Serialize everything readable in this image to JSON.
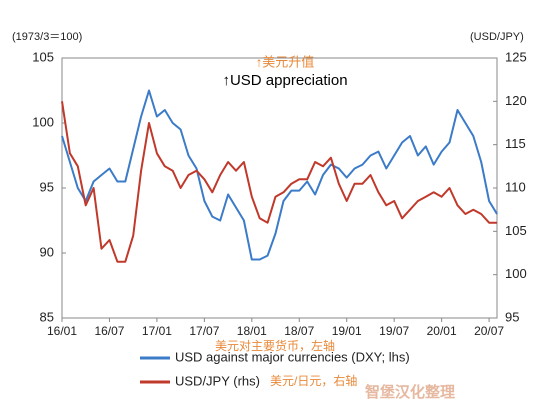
{
  "chart_data": {
    "type": "line",
    "left_axis_label": "(1973/3＝100)",
    "right_axis_label": "(USD/JPY)",
    "annotation_cn": "↑美元升值",
    "annotation_en": "↑USD appreciation",
    "categories": [
      "16/01",
      null,
      null,
      null,
      null,
      null,
      "16/07",
      null,
      null,
      null,
      null,
      null,
      "17/01",
      null,
      null,
      null,
      null,
      null,
      "17/07",
      null,
      null,
      null,
      null,
      null,
      "18/01",
      null,
      null,
      null,
      null,
      null,
      "18/07",
      null,
      null,
      null,
      null,
      null,
      "19/01",
      null,
      null,
      null,
      null,
      null,
      "19/07",
      null,
      null,
      null,
      null,
      null,
      "20/01",
      null,
      null,
      null,
      null,
      null,
      "20/07",
      null
    ],
    "ylim": [
      85,
      105
    ],
    "yticks": [
      85,
      90,
      95,
      100,
      105
    ],
    "y2lim": [
      95,
      125
    ],
    "y2ticks": [
      95,
      100,
      105,
      110,
      115,
      120,
      125
    ],
    "series": [
      {
        "name": "USD against major currencies (DXY; lhs)",
        "label_cn": "美元对主要货币，左轴",
        "color": "#3b7bc8",
        "axis": "y",
        "values": [
          99,
          97,
          95,
          94,
          95.5,
          96,
          96.5,
          95.5,
          95.5,
          98,
          100.5,
          102.5,
          100.5,
          101,
          100,
          99.5,
          97.5,
          96.5,
          94,
          92.8,
          92.5,
          94.5,
          93.5,
          92.5,
          89.5,
          89.5,
          89.8,
          91.5,
          94,
          94.8,
          94.8,
          95.5,
          94.5,
          96,
          96.8,
          96.5,
          95.8,
          96.5,
          96.8,
          97.5,
          97.8,
          96.5,
          97.5,
          98.5,
          99,
          97.5,
          98.2,
          96.8,
          97.8,
          98.5,
          101,
          100,
          99,
          97,
          94,
          93
        ]
      },
      {
        "name": "USD/JPY (rhs)",
        "label_cn": "美元/日元，右轴",
        "color": "#c0392b",
        "axis": "y2",
        "values": [
          120,
          114,
          112.5,
          108,
          110,
          103,
          104,
          101.5,
          101.5,
          104.5,
          112,
          117.5,
          114,
          112.5,
          112,
          110,
          111.5,
          112,
          111,
          109.5,
          111.5,
          113,
          112,
          113,
          109,
          106.5,
          106,
          109,
          109.5,
          110.5,
          111,
          111,
          113,
          112.5,
          113.5,
          110.5,
          108.5,
          110.5,
          110.5,
          111.5,
          109.5,
          108,
          108.5,
          106.5,
          107.5,
          108.5,
          109,
          109.5,
          109,
          110,
          108,
          107,
          107.5,
          107,
          106,
          106
        ]
      }
    ]
  },
  "watermark": "智堡汉化整理"
}
